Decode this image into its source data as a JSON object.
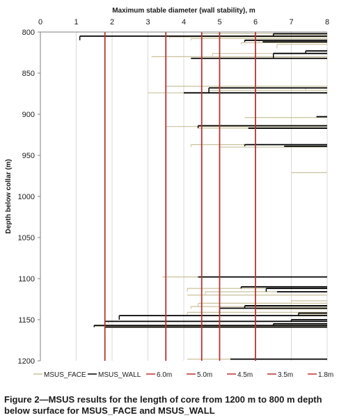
{
  "caption": "Figure 2—MSUS results for the length of core from 1200 m to 800 m depth below surface for MSUS_FACE and MSUS_WALL",
  "chart_data": {
    "type": "step",
    "title": "",
    "xlabel": "Maximum stable diameter (wall stability), m",
    "ylabel": "Depth below collar (m)",
    "xlim": [
      0,
      8
    ],
    "ylim": [
      800,
      1200
    ],
    "y_inverted": true,
    "x_axis_position": "top",
    "x_ticks": [
      "0",
      "1",
      "2",
      "3",
      "4",
      "5",
      "6",
      "7",
      "8"
    ],
    "y_ticks": [
      "800",
      "850",
      "900",
      "950",
      "1000",
      "1050",
      "1100",
      "1150",
      "1200"
    ],
    "grid": true,
    "legend_position": "bottom",
    "colors": {
      "face": "#c9c19b",
      "wall": "#000000",
      "reference": "#b8312f",
      "grid": "#d9d9d9"
    },
    "series": [
      {
        "name": "MSUS_FACE",
        "segments": [
          [
            802,
            4.5
          ],
          [
            803,
            6.5
          ],
          [
            805,
            1.1
          ],
          [
            806,
            3.6
          ],
          [
            808,
            4.2
          ],
          [
            810,
            6.1
          ],
          [
            813,
            5.6
          ],
          [
            815,
            6.6
          ],
          [
            820,
            8.0
          ],
          [
            823,
            7.4
          ],
          [
            826,
            4.8
          ],
          [
            830,
            3.1
          ],
          [
            866,
            3.5
          ],
          [
            868,
            7.4
          ],
          [
            871,
            4.7
          ],
          [
            874,
            3.0
          ],
          [
            904,
            5.7
          ],
          [
            915,
            3.5
          ],
          [
            917,
            4.4
          ],
          [
            937,
            4.2
          ],
          [
            940,
            5.0
          ],
          [
            971,
            7.0
          ],
          [
            1098,
            3.4
          ],
          [
            1112,
            4.1
          ],
          [
            1116,
            4.6
          ],
          [
            1120,
            4.1
          ],
          [
            1127,
            7.0
          ],
          [
            1130,
            4.4
          ],
          [
            1134,
            4.2
          ],
          [
            1137,
            6.0
          ],
          [
            1141,
            4.1
          ],
          [
            1144,
            7.2
          ],
          [
            1152,
            1.9
          ],
          [
            1155,
            6.5
          ],
          [
            1158,
            1.5
          ],
          [
            1198,
            4.1
          ]
        ]
      },
      {
        "name": "MSUS_WALL",
        "segments": [
          [
            802,
            6.5
          ],
          [
            805,
            1.1
          ],
          [
            810,
            5.7
          ],
          [
            812,
            6.2
          ],
          [
            823,
            7.4
          ],
          [
            826,
            6.5
          ],
          [
            832,
            4.2
          ],
          [
            868,
            4.7
          ],
          [
            874,
            4.0
          ],
          [
            903,
            7.7
          ],
          [
            914,
            4.4
          ],
          [
            917,
            5.8
          ],
          [
            937,
            5.7
          ],
          [
            939,
            6.8
          ],
          [
            1098,
            4.4
          ],
          [
            1110,
            5.6
          ],
          [
            1112,
            6.3
          ],
          [
            1116,
            6.6
          ],
          [
            1133,
            5.7
          ],
          [
            1136,
            5.0
          ],
          [
            1142,
            7.2
          ],
          [
            1145,
            2.2
          ],
          [
            1150,
            7.0
          ],
          [
            1152,
            1.8
          ],
          [
            1155,
            6.5
          ],
          [
            1157,
            1.5
          ],
          [
            1159,
            1.8
          ],
          [
            1198,
            5.3
          ]
        ]
      }
    ],
    "reference_lines": [
      {
        "name": "6.0m",
        "x": 6.0
      },
      {
        "name": "5.0m",
        "x": 5.0
      },
      {
        "name": "4.5m",
        "x": 4.5
      },
      {
        "name": "3.5m",
        "x": 3.5
      },
      {
        "name": "1.8m",
        "x": 1.8
      }
    ]
  }
}
